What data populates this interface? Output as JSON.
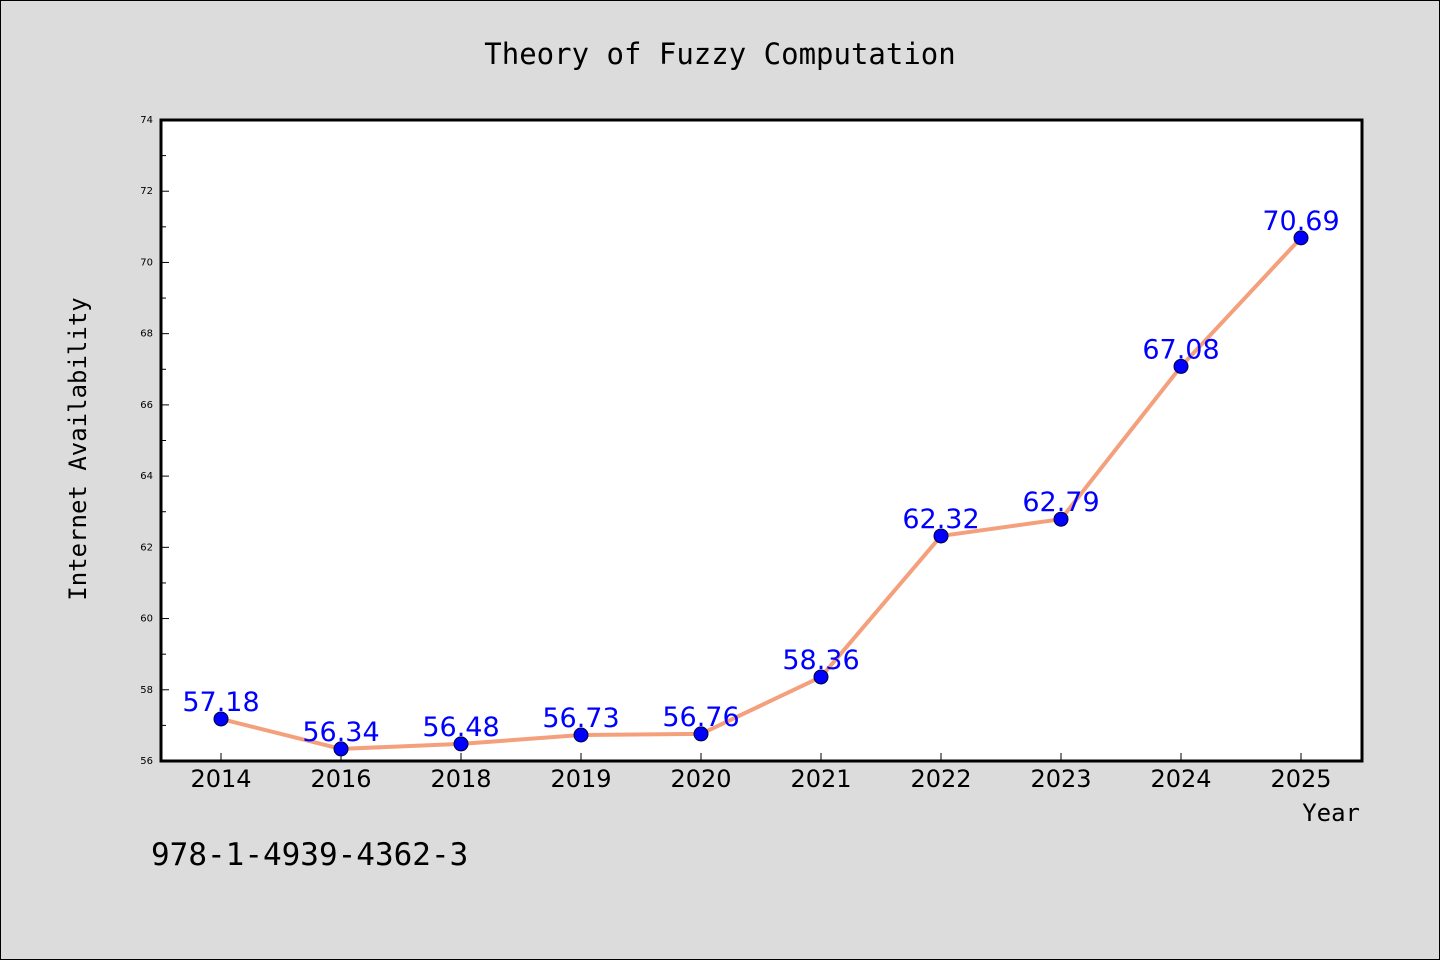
{
  "chart_data": {
    "type": "line",
    "title": "Theory of Fuzzy Computation",
    "xlabel": "Year",
    "ylabel": "Internet Availability",
    "categories": [
      "2014",
      "2016",
      "2018",
      "2019",
      "2020",
      "2021",
      "2022",
      "2023",
      "2024",
      "2025"
    ],
    "series": [
      {
        "values": [
          57.18,
          56.34,
          56.48,
          56.73,
          56.76,
          58.36,
          62.32,
          62.79,
          67.08,
          70.69
        ],
        "data_labels": [
          "57.18",
          "56.34",
          "56.48",
          "56.73",
          "56.76",
          "58.36",
          "62.32",
          "62.79",
          "67.08",
          "70.69"
        ]
      }
    ],
    "ylim": [
      56,
      74
    ],
    "yticks": [
      "56",
      "58",
      "60",
      "62",
      "64",
      "66",
      "68",
      "70",
      "72",
      "74"
    ],
    "grid": false,
    "legend": "none",
    "colors": {
      "line": "#f4a07c",
      "marker": "#0000ff",
      "data_label": "#0000ff",
      "background": "#dcdcdc",
      "plot_background": "#ffffff"
    }
  },
  "footer": {
    "isbn": "978-1-4939-4362-3"
  }
}
